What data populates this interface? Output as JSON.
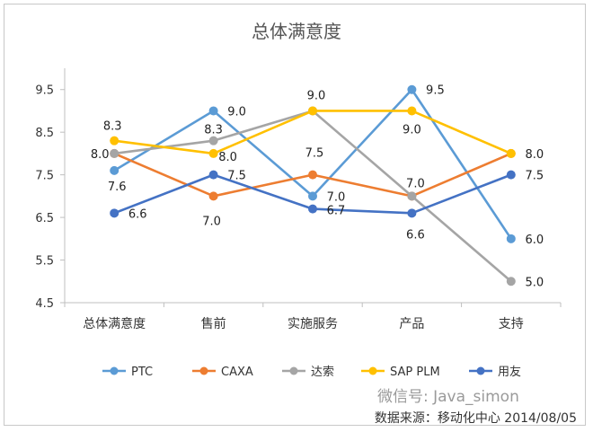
{
  "chart_data": {
    "type": "line",
    "title": "总体满意度",
    "xlabel": "",
    "ylabel": "",
    "categories": [
      "总体满意度",
      "售前",
      "实施服务",
      "产品",
      "支持"
    ],
    "yticks": [
      "4.5",
      "5.5",
      "6.5",
      "7.5",
      "8.5",
      "9.5"
    ],
    "ylim": [
      4.5,
      10
    ],
    "grid": false,
    "legend_position": "bottom",
    "series": [
      {
        "name": "PTC",
        "color": "#5b9bd5",
        "values": [
          7.6,
          9.0,
          7.0,
          9.5,
          6.0
        ]
      },
      {
        "name": "CAXA",
        "color": "#ed7d31",
        "values": [
          8.0,
          7.0,
          7.5,
          7.0,
          8.0
        ]
      },
      {
        "name": "达索",
        "color": "#a5a5a5",
        "values": [
          8.0,
          8.3,
          9.0,
          7.0,
          5.0
        ]
      },
      {
        "name": "SAP PLM",
        "color": "#ffc000",
        "values": [
          8.3,
          8.0,
          9.0,
          9.0,
          8.0
        ]
      },
      {
        "name": "用友",
        "color": "#4472c4",
        "values": [
          6.6,
          7.5,
          6.7,
          6.6,
          7.5
        ]
      }
    ],
    "data_labels": [
      {
        "text": "8.3",
        "cat": 0,
        "val": 8.3,
        "dx": -2,
        "dy": -12
      },
      {
        "text": "8.0",
        "cat": 0,
        "val": 8.0,
        "dx": -16,
        "dy": 5
      },
      {
        "text": "7.6",
        "cat": 0,
        "val": 7.6,
        "dx": 3,
        "dy": 22
      },
      {
        "text": "6.6",
        "cat": 0,
        "val": 6.6,
        "dx": 26,
        "dy": 5
      },
      {
        "text": "9.0",
        "cat": 1,
        "val": 9.0,
        "dx": 26,
        "dy": 5
      },
      {
        "text": "8.3",
        "cat": 1,
        "val": 8.3,
        "dx": 0,
        "dy": -8
      },
      {
        "text": "8.0",
        "cat": 1,
        "val": 8.0,
        "dx": 16,
        "dy": 8
      },
      {
        "text": "7.5",
        "cat": 1,
        "val": 7.5,
        "dx": 26,
        "dy": 5
      },
      {
        "text": "7.0",
        "cat": 1,
        "val": 7.0,
        "dx": -2,
        "dy": 32
      },
      {
        "text": "9.0",
        "cat": 2,
        "val": 9.0,
        "dx": 4,
        "dy": -13
      },
      {
        "text": "7.5",
        "cat": 2,
        "val": 7.5,
        "dx": 2,
        "dy": -20
      },
      {
        "text": "7.0",
        "cat": 2,
        "val": 7.0,
        "dx": 26,
        "dy": 5
      },
      {
        "text": "6.7",
        "cat": 2,
        "val": 6.7,
        "dx": 26,
        "dy": 6
      },
      {
        "text": "9.5",
        "cat": 3,
        "val": 9.5,
        "dx": 26,
        "dy": 5
      },
      {
        "text": "9.0",
        "cat": 3,
        "val": 9.0,
        "dx": 0,
        "dy": 25
      },
      {
        "text": "7.0",
        "cat": 3,
        "val": 7.0,
        "dx": 4,
        "dy": -10
      },
      {
        "text": "6.6",
        "cat": 3,
        "val": 6.6,
        "dx": 4,
        "dy": 28
      },
      {
        "text": "8.0",
        "cat": 4,
        "val": 8.0,
        "dx": 26,
        "dy": 5
      },
      {
        "text": "7.5",
        "cat": 4,
        "val": 7.5,
        "dx": 26,
        "dy": 5
      },
      {
        "text": "6.0",
        "cat": 4,
        "val": 6.0,
        "dx": 26,
        "dy": 5
      },
      {
        "text": "5.0",
        "cat": 4,
        "val": 5.0,
        "dx": 26,
        "dy": 5
      }
    ]
  },
  "watermark": "微信号: Java_simon",
  "source": "数据来源：移动化中心 2014/08/05"
}
